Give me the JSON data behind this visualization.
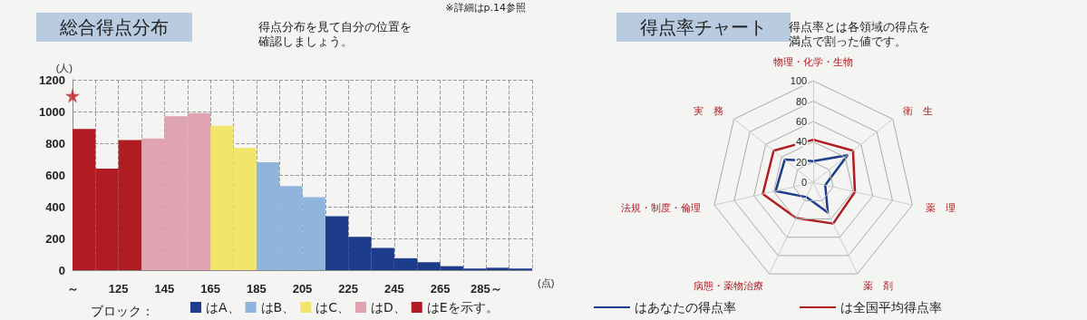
{
  "chart_data": [
    {
      "type": "histogram",
      "title": "総合得点分布",
      "subtitle": "得点分布を見て自分の位置を確認しましょう。",
      "annotations": [
        "※詳細はp.14参照"
      ],
      "xlabel": "(点)",
      "ylabel": "(人)",
      "legend_title": "ブロック：",
      "bins": [
        105,
        115,
        125,
        135,
        145,
        155,
        165,
        175,
        185,
        195,
        205,
        215,
        225,
        235,
        245,
        255,
        265,
        275,
        285,
        295,
        305
      ],
      "series": [
        {
          "name": "はA、",
          "color": "#1d3c8c",
          "values": [
            null,
            null,
            null,
            null,
            null,
            null,
            null,
            null,
            null,
            null,
            null,
            340,
            210,
            140,
            75,
            50,
            25,
            10,
            15,
            10
          ]
        },
        {
          "name": "はB、",
          "color": "#8fb5dd",
          "values": [
            null,
            null,
            null,
            null,
            null,
            null,
            null,
            null,
            680,
            530,
            460,
            null,
            null,
            null,
            null,
            null,
            null,
            null,
            null,
            null
          ]
        },
        {
          "name": "はC、",
          "color": "#f1e56c",
          "values": [
            null,
            null,
            null,
            null,
            null,
            null,
            910,
            770,
            null,
            null,
            null,
            null,
            null,
            null,
            null,
            null,
            null,
            null,
            null,
            null
          ]
        },
        {
          "name": "はD、",
          "color": "#dfa3b1",
          "values": [
            null,
            null,
            null,
            830,
            970,
            990,
            null,
            null,
            null,
            null,
            null,
            null,
            null,
            null,
            null,
            null,
            null,
            null,
            null,
            null
          ]
        },
        {
          "name": "はEを示す。",
          "color": "#b01c22",
          "values": [
            890,
            640,
            820,
            null,
            null,
            null,
            null,
            null,
            null,
            null,
            null,
            null,
            null,
            null,
            null,
            null,
            null,
            null,
            null,
            null
          ]
        },
        {
          "type": "scatter",
          "color": "#c0202a",
          "marker": "star",
          "x": [
            105
          ],
          "values": [
            1100
          ]
        }
      ],
      "xlim": [
        105,
        305
      ],
      "xticks": [
        {
          "value": 105,
          "label": "～"
        },
        {
          "value": 115,
          "label": null
        },
        125,
        {
          "value": 135,
          "label": null
        },
        145,
        {
          "value": 155,
          "label": null
        },
        165,
        {
          "value": 175,
          "label": null
        },
        185,
        {
          "value": 195,
          "label": null
        },
        205,
        {
          "value": 215,
          "label": null
        },
        225,
        {
          "value": 235,
          "label": null
        },
        245,
        {
          "value": 255,
          "label": null
        },
        265,
        {
          "value": 275,
          "label": null
        },
        {
          "value": 285,
          "label": "285～"
        },
        {
          "value": 295,
          "label": null
        },
        {
          "value": 305,
          "label": null
        }
      ],
      "ylim": [
        0,
        1200
      ],
      "yticks": [
        0,
        200,
        400,
        600,
        800,
        1000,
        1200
      ],
      "grid": true,
      "legend": "bottom"
    },
    {
      "type": "radar",
      "title": "得点率チャート",
      "subtitle": "得点率とは各領域の得点を満点で割った値です。",
      "categories": [
        "物理・化学・生物",
        "衛　生",
        "薬　理",
        "薬　剤",
        "病態・薬物治療",
        "法規・制度・倫理",
        "実　務"
      ],
      "series": [
        {
          "name": "はあなたの得点率",
          "color": "#1d3c8c",
          "values": [
            21,
            43,
            12,
            33,
            16,
            38,
            36
          ]
        },
        {
          "name": "は全国平均得点率",
          "color": "#b01c22",
          "values": [
            42,
            50,
            42,
            45,
            39,
            51,
            50
          ]
        }
      ],
      "ylim": [
        0,
        100
      ],
      "yticks": [
        0,
        20,
        40,
        60,
        80,
        100
      ],
      "legend": "bottom",
      "marker": "none"
    }
  ]
}
